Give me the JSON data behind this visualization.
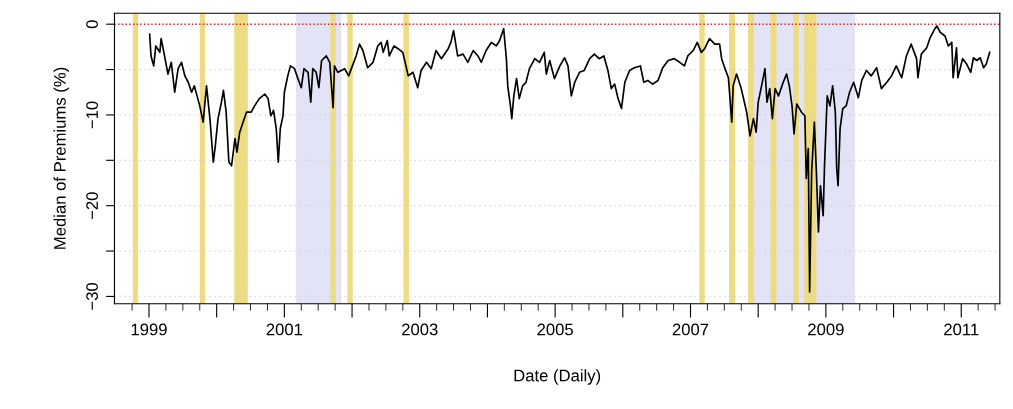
{
  "chart_data": {
    "type": "line",
    "xlabel": "Date (Daily)",
    "ylabel": "Median of Premiums (%)",
    "xlim": [
      1998.49,
      2011.57
    ],
    "ylim": [
      -30.8,
      1.2
    ],
    "xticks": [
      {
        "value": 1998.75,
        "label": null
      },
      1999,
      {
        "value": 1999.25,
        "label": null
      },
      {
        "value": 1999.5,
        "label": null
      },
      {
        "value": 1999.75,
        "label": null
      },
      {
        "value": 2000,
        "label": null
      },
      {
        "value": 2000.25,
        "label": null
      },
      {
        "value": 2000.5,
        "label": null
      },
      {
        "value": 2000.75,
        "label": null
      },
      2001,
      {
        "value": 2001.25,
        "label": null
      },
      {
        "value": 2001.5,
        "label": null
      },
      {
        "value": 2001.75,
        "label": null
      },
      {
        "value": 2002,
        "label": null
      },
      {
        "value": 2002.25,
        "label": null
      },
      {
        "value": 2002.5,
        "label": null
      },
      {
        "value": 2002.75,
        "label": null
      },
      2003,
      {
        "value": 2003.25,
        "label": null
      },
      {
        "value": 2003.5,
        "label": null
      },
      {
        "value": 2003.75,
        "label": null
      },
      {
        "value": 2004,
        "label": null
      },
      {
        "value": 2004.25,
        "label": null
      },
      {
        "value": 2004.5,
        "label": null
      },
      {
        "value": 2004.75,
        "label": null
      },
      2005,
      {
        "value": 2005.25,
        "label": null
      },
      {
        "value": 2005.5,
        "label": null
      },
      {
        "value": 2005.75,
        "label": null
      },
      {
        "value": 2006,
        "label": null
      },
      {
        "value": 2006.25,
        "label": null
      },
      {
        "value": 2006.5,
        "label": null
      },
      {
        "value": 2006.75,
        "label": null
      },
      2007,
      {
        "value": 2007.25,
        "label": null
      },
      {
        "value": 2007.5,
        "label": null
      },
      {
        "value": 2007.75,
        "label": null
      },
      {
        "value": 2008,
        "label": null
      },
      {
        "value": 2008.25,
        "label": null
      },
      {
        "value": 2008.5,
        "label": null
      },
      {
        "value": 2008.75,
        "label": null
      },
      2009,
      {
        "value": 2009.25,
        "label": null
      },
      {
        "value": 2009.5,
        "label": null
      },
      {
        "value": 2009.75,
        "label": null
      },
      {
        "value": 2010,
        "label": null
      },
      {
        "value": 2010.25,
        "label": null
      },
      {
        "value": 2010.5,
        "label": null
      },
      {
        "value": 2010.75,
        "label": null
      },
      2011,
      {
        "value": 2011.25,
        "label": null
      },
      {
        "value": 2011.5,
        "label": null
      }
    ],
    "yticks": [
      0,
      {
        "value": -5,
        "label": null
      },
      {
        "value": -10,
        "label": "−10"
      },
      {
        "value": -15,
        "label": null
      },
      {
        "value": -20,
        "label": "−20"
      },
      {
        "value": -25,
        "label": null
      },
      {
        "value": -30,
        "label": "−30"
      }
    ],
    "grid": "y",
    "legend": false,
    "marker": "none",
    "line_style": "solid",
    "ref_lines": [
      {
        "axis": "y",
        "value": 0,
        "label": null,
        "color": "#cd2626",
        "line_style": "dotted"
      }
    ],
    "bands": [
      {
        "axis": "x",
        "from": 2001.17,
        "to": 2001.84,
        "label": null,
        "color": "#e3e3f7"
      },
      {
        "axis": "x",
        "from": 2007.94,
        "to": 2009.43,
        "label": null,
        "color": "#e3e3f7"
      },
      {
        "axis": "x",
        "from": 1998.76,
        "to": 1998.84,
        "label": null,
        "color": "#eedc82"
      },
      {
        "axis": "x",
        "from": 1999.75,
        "to": 1999.83,
        "label": null,
        "color": "#eedc82"
      },
      {
        "axis": "x",
        "from": 2000.26,
        "to": 2000.46,
        "label": null,
        "color": "#eedc82"
      },
      {
        "axis": "x",
        "from": 2001.68,
        "to": 2001.76,
        "label": null,
        "color": "#eedc82"
      },
      {
        "axis": "x",
        "from": 2001.93,
        "to": 2002.01,
        "label": null,
        "color": "#eedc82"
      },
      {
        "axis": "x",
        "from": 2002.76,
        "to": 2002.84,
        "label": null,
        "color": "#eedc82"
      },
      {
        "axis": "x",
        "from": 2007.13,
        "to": 2007.21,
        "label": null,
        "color": "#eedc82"
      },
      {
        "axis": "x",
        "from": 2007.57,
        "to": 2007.66,
        "label": null,
        "color": "#eedc82"
      },
      {
        "axis": "x",
        "from": 2007.85,
        "to": 2007.94,
        "label": null,
        "color": "#eedc82"
      },
      {
        "axis": "x",
        "from": 2008.18,
        "to": 2008.27,
        "label": null,
        "color": "#eedc82"
      },
      {
        "axis": "x",
        "from": 2008.52,
        "to": 2008.6,
        "label": null,
        "color": "#eedc82"
      },
      {
        "axis": "x",
        "from": 2008.68,
        "to": 2008.86,
        "label": null,
        "color": "#eedc82"
      }
    ],
    "series": [
      {
        "color": "#000000",
        "x": [
          1999.01,
          1999.03,
          1999.07,
          1999.1,
          1999.16,
          1999.18,
          1999.23,
          1999.28,
          1999.33,
          1999.38,
          1999.43,
          1999.48,
          1999.53,
          1999.58,
          1999.63,
          1999.67,
          1999.75,
          1999.8,
          1999.85,
          1999.9,
          1999.95,
          1999.98,
          2000.02,
          2000.07,
          2000.1,
          2000.14,
          2000.18,
          2000.22,
          2000.27,
          2000.3,
          2000.34,
          2000.39,
          2000.44,
          2000.51,
          2000.56,
          2000.63,
          2000.71,
          2000.76,
          2000.8,
          2000.84,
          2000.88,
          2000.91,
          2000.94,
          2000.98,
          2001.0,
          2001.05,
          2001.09,
          2001.15,
          2001.2,
          2001.25,
          2001.29,
          2001.35,
          2001.39,
          2001.42,
          2001.47,
          2001.51,
          2001.55,
          2001.62,
          2001.67,
          2001.72,
          2001.74,
          2001.79,
          2001.89,
          2001.95,
          2001.99,
          2002.06,
          2002.11,
          2002.16,
          2002.23,
          2002.31,
          2002.38,
          2002.43,
          2002.46,
          2002.52,
          2002.55,
          2002.62,
          2002.68,
          2002.75,
          2002.83,
          2002.9,
          2002.97,
          2003.02,
          2003.1,
          2003.17,
          2003.24,
          2003.32,
          2003.42,
          2003.46,
          2003.5,
          2003.56,
          2003.64,
          2003.71,
          2003.79,
          2003.86,
          2003.91,
          2003.98,
          2004.06,
          2004.13,
          2004.18,
          2004.24,
          2004.28,
          2004.3,
          2004.34,
          2004.36,
          2004.39,
          2004.43,
          2004.47,
          2004.52,
          2004.57,
          2004.62,
          2004.7,
          2004.77,
          2004.84,
          2004.87,
          2004.92,
          2004.99,
          2005.07,
          2005.14,
          2005.19,
          2005.24,
          2005.29,
          2005.36,
          2005.43,
          2005.51,
          2005.58,
          2005.65,
          2005.72,
          2005.78,
          2005.83,
          2005.88,
          2005.93,
          2005.98,
          2006.03,
          2006.1,
          2006.17,
          2006.26,
          2006.31,
          2006.37,
          2006.44,
          2006.52,
          2006.59,
          2006.67,
          2006.76,
          2006.84,
          2006.91,
          2006.96,
          2007.04,
          2007.1,
          2007.16,
          2007.21,
          2007.28,
          2007.36,
          2007.43,
          2007.46,
          2007.51,
          2007.56,
          2007.61,
          2007.63,
          2007.68,
          2007.75,
          2007.83,
          2007.88,
          2007.93,
          2007.97,
          2008.0,
          2008.05,
          2008.1,
          2008.13,
          2008.17,
          2008.21,
          2008.25,
          2008.3,
          2008.37,
          2008.42,
          2008.46,
          2008.5,
          2008.53,
          2008.57,
          2008.64,
          2008.69,
          2008.71,
          2008.74,
          2008.76,
          2008.79,
          2008.83,
          2008.86,
          2008.89,
          2008.92,
          2008.96,
          2008.98,
          2009.02,
          2009.06,
          2009.1,
          2009.14,
          2009.16,
          2009.18,
          2009.21,
          2009.25,
          2009.3,
          2009.35,
          2009.41,
          2009.48,
          2009.53,
          2009.6,
          2009.67,
          2009.75,
          2009.82,
          2009.9,
          2009.97,
          2010.04,
          2010.12,
          2010.19,
          2010.26,
          2010.34,
          2010.36,
          2010.41,
          2010.49,
          2010.54,
          2010.61,
          2010.64,
          2010.69,
          2010.76,
          2010.81,
          2010.86,
          2010.88,
          2010.93,
          2010.95,
          2011.02,
          2011.08,
          2011.14,
          2011.18,
          2011.23,
          2011.28,
          2011.33,
          2011.37,
          2011.42
        ],
        "values": [
          -1.1,
          -3.5,
          -4.6,
          -2.4,
          -3.1,
          -1.6,
          -3.5,
          -5.5,
          -4.2,
          -7.5,
          -4.9,
          -4.2,
          -5.7,
          -6.4,
          -7.5,
          -6.8,
          -9.0,
          -10.8,
          -6.8,
          -10.4,
          -15.2,
          -13.4,
          -10.4,
          -8.6,
          -7.3,
          -9.7,
          -15.2,
          -15.6,
          -12.6,
          -14.1,
          -11.9,
          -10.8,
          -9.7,
          -9.7,
          -9.0,
          -8.2,
          -7.7,
          -8.2,
          -10.1,
          -9.5,
          -11.5,
          -15.2,
          -11.5,
          -10.1,
          -7.5,
          -5.7,
          -4.6,
          -4.9,
          -6.0,
          -7.0,
          -4.9,
          -5.3,
          -8.6,
          -4.9,
          -5.3,
          -7.0,
          -4.0,
          -3.5,
          -4.2,
          -9.2,
          -4.6,
          -5.3,
          -4.9,
          -5.7,
          -4.9,
          -3.5,
          -2.2,
          -2.9,
          -4.8,
          -4.2,
          -2.4,
          -2.0,
          -3.1,
          -1.8,
          -3.5,
          -2.4,
          -2.7,
          -3.1,
          -5.7,
          -5.3,
          -7.0,
          -5.1,
          -4.2,
          -4.9,
          -2.9,
          -3.8,
          -2.7,
          -2.0,
          -0.7,
          -3.5,
          -3.3,
          -4.2,
          -2.9,
          -3.5,
          -4.2,
          -2.9,
          -2.0,
          -2.4,
          -1.8,
          -0.5,
          -3.8,
          -6.8,
          -9.0,
          -10.4,
          -7.9,
          -6.0,
          -8.2,
          -6.8,
          -6.4,
          -4.9,
          -3.8,
          -4.2,
          -3.1,
          -5.5,
          -4.0,
          -6.0,
          -4.6,
          -3.7,
          -4.6,
          -7.9,
          -6.4,
          -5.3,
          -5.1,
          -3.8,
          -3.3,
          -3.8,
          -3.5,
          -5.1,
          -7.1,
          -6.6,
          -8.2,
          -9.3,
          -6.4,
          -5.1,
          -4.8,
          -4.6,
          -6.4,
          -6.2,
          -6.6,
          -6.2,
          -4.8,
          -4.0,
          -3.8,
          -4.2,
          -4.6,
          -3.5,
          -2.9,
          -2.0,
          -3.1,
          -2.7,
          -1.6,
          -2.2,
          -2.2,
          -3.8,
          -4.9,
          -5.9,
          -10.8,
          -6.8,
          -5.5,
          -7.1,
          -9.7,
          -12.3,
          -10.4,
          -11.9,
          -8.6,
          -6.8,
          -4.9,
          -8.6,
          -7.1,
          -10.4,
          -7.1,
          -7.9,
          -6.4,
          -5.5,
          -6.8,
          -9.0,
          -12.1,
          -8.8,
          -9.7,
          -10.1,
          -17.0,
          -13.7,
          -29.5,
          -16.3,
          -10.8,
          -16.3,
          -22.9,
          -17.8,
          -21.1,
          -15.6,
          -7.9,
          -9.0,
          -6.8,
          -9.7,
          -15.9,
          -17.8,
          -11.5,
          -9.3,
          -9.0,
          -7.5,
          -6.4,
          -8.1,
          -6.2,
          -5.1,
          -5.7,
          -4.8,
          -7.1,
          -6.4,
          -5.7,
          -4.6,
          -5.9,
          -3.5,
          -2.2,
          -3.8,
          -5.9,
          -3.3,
          -2.6,
          -1.5,
          -0.5,
          -0.2,
          -0.9,
          -1.3,
          -2.4,
          -2.0,
          -5.9,
          -2.6,
          -5.9,
          -3.8,
          -4.4,
          -5.3,
          -3.7,
          -4.0,
          -3.7,
          -4.8,
          -4.4,
          -3.1
        ]
      }
    ]
  }
}
